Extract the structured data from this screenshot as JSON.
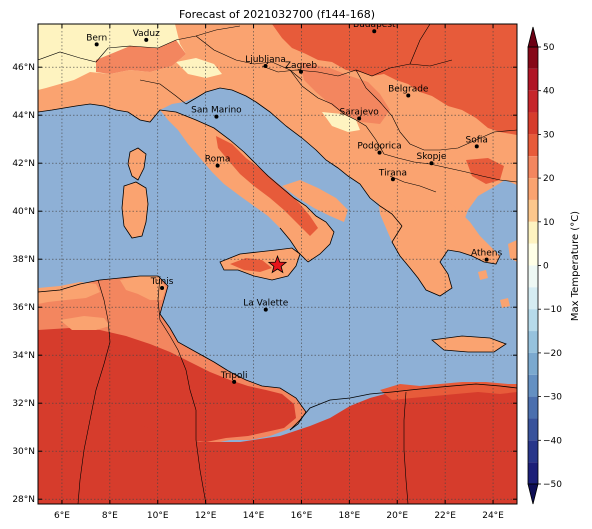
{
  "title": "Forecast of 2021032700 (f144-168)",
  "map": {
    "lon_range": [
      5,
      25
    ],
    "lat_range": [
      27.8,
      47.8
    ],
    "x_ticks": [
      {
        "lon": 6,
        "label": "6°E"
      },
      {
        "lon": 8,
        "label": "8°E"
      },
      {
        "lon": 10,
        "label": "10°E"
      },
      {
        "lon": 12,
        "label": "12°E"
      },
      {
        "lon": 14,
        "label": "14°E"
      },
      {
        "lon": 16,
        "label": "16°E"
      },
      {
        "lon": 18,
        "label": "18°E"
      },
      {
        "lon": 20,
        "label": "20°E"
      },
      {
        "lon": 22,
        "label": "22°E"
      },
      {
        "lon": 24,
        "label": "24°E"
      }
    ],
    "y_ticks": [
      {
        "lat": 28,
        "label": "28°N"
      },
      {
        "lat": 30,
        "label": "30°N"
      },
      {
        "lat": 32,
        "label": "32°N"
      },
      {
        "lat": 34,
        "label": "34°N"
      },
      {
        "lat": 36,
        "label": "36°N"
      },
      {
        "lat": 38,
        "label": "38°N"
      },
      {
        "lat": 40,
        "label": "40°N"
      },
      {
        "lat": 42,
        "label": "42°N"
      },
      {
        "lat": 44,
        "label": "44°N"
      },
      {
        "lat": 46,
        "label": "46°N"
      }
    ],
    "gridlines": true,
    "sea_color": "#8eb0d6",
    "cities": [
      {
        "name": "Bern",
        "lon": 7.45,
        "lat": 46.95
      },
      {
        "name": "Vaduz",
        "lon": 9.52,
        "lat": 47.14
      },
      {
        "name": "Budapest",
        "lon": 19.04,
        "lat": 47.5
      },
      {
        "name": "Ljubljana",
        "lon": 14.5,
        "lat": 46.05
      },
      {
        "name": "Zagreb",
        "lon": 15.98,
        "lat": 45.81
      },
      {
        "name": "Belgrade",
        "lon": 20.46,
        "lat": 44.82
      },
      {
        "name": "San Marino",
        "lon": 12.45,
        "lat": 43.94
      },
      {
        "name": "Sarajevo",
        "lon": 18.41,
        "lat": 43.86
      },
      {
        "name": "Sofia",
        "lon": 23.32,
        "lat": 42.7
      },
      {
        "name": "Podgorica",
        "lon": 19.26,
        "lat": 42.44
      },
      {
        "name": "Skopje",
        "lon": 21.43,
        "lat": 42.0
      },
      {
        "name": "Roma",
        "lon": 12.5,
        "lat": 41.9
      },
      {
        "name": "Tirana",
        "lon": 19.82,
        "lat": 41.33
      },
      {
        "name": "Athens",
        "lon": 23.73,
        "lat": 37.98
      },
      {
        "name": "Tunis",
        "lon": 10.18,
        "lat": 36.8
      },
      {
        "name": "La Valette",
        "lon": 14.51,
        "lat": 35.9
      },
      {
        "name": "Tripoli",
        "lon": 13.19,
        "lat": 32.89
      }
    ],
    "star_marker": {
      "lon": 15.0,
      "lat": 37.75,
      "color": "#e8141a"
    }
  },
  "colorbar": {
    "label": "Max Temperature (°C)",
    "ticks": [
      "50",
      "40",
      "30",
      "20",
      "10",
      "0",
      "−10",
      "−20",
      "−30",
      "−40",
      "−50"
    ],
    "levels": [
      {
        "from": 45,
        "to": 50,
        "color": "#860818"
      },
      {
        "from": 40,
        "to": 45,
        "color": "#b01526"
      },
      {
        "from": 35,
        "to": 40,
        "color": "#c6262b"
      },
      {
        "from": 30,
        "to": 35,
        "color": "#d63c2c"
      },
      {
        "from": 25,
        "to": 30,
        "color": "#e75b3a"
      },
      {
        "from": 20,
        "to": 25,
        "color": "#f3865f"
      },
      {
        "from": 15,
        "to": 20,
        "color": "#faa370"
      },
      {
        "from": 10,
        "to": 15,
        "color": "#fdc78c"
      },
      {
        "from": 5,
        "to": 10,
        "color": "#fef3c0"
      },
      {
        "from": 0,
        "to": 5,
        "color": "#ffffe7"
      },
      {
        "from": -5,
        "to": 0,
        "color": "#eef8f4"
      },
      {
        "from": -10,
        "to": -5,
        "color": "#d5ecf2"
      },
      {
        "from": -15,
        "to": -10,
        "color": "#b6daea"
      },
      {
        "from": -20,
        "to": -15,
        "color": "#96c2dd"
      },
      {
        "from": -25,
        "to": -20,
        "color": "#7ba9cf"
      },
      {
        "from": -30,
        "to": -25,
        "color": "#6490c2"
      },
      {
        "from": -35,
        "to": -30,
        "color": "#4b6fae"
      },
      {
        "from": -40,
        "to": -35,
        "color": "#38529b"
      },
      {
        "from": -45,
        "to": -40,
        "color": "#28368a"
      },
      {
        "from": -50,
        "to": -45,
        "color": "#1c1f78"
      }
    ],
    "extend_top_color": "#6b0013",
    "extend_bottom_color": "#0e0e55"
  }
}
